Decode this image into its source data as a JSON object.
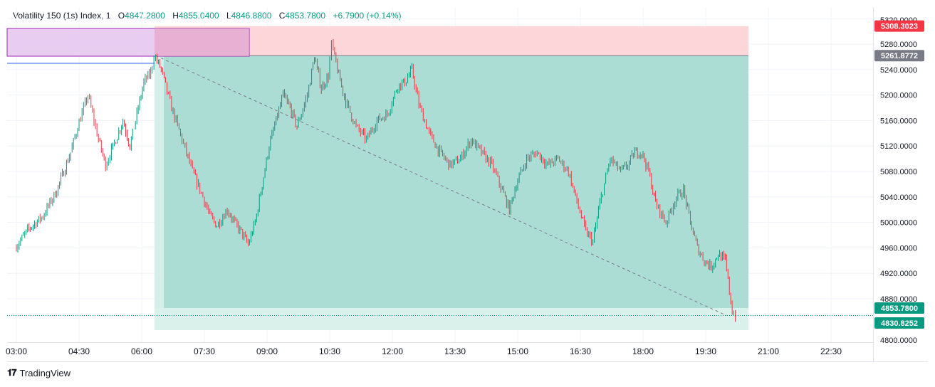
{
  "legend": {
    "title": "Volatility 150 (1s) Index, 1",
    "o_label": "O",
    "o_value": "4847.2800",
    "h_label": "H",
    "h_value": "4855.0400",
    "l_label": "L",
    "l_value": "4846.8800",
    "c_label": "C",
    "c_value": "4853.7800",
    "change": "+6.7900 (+0.14%)"
  },
  "footer": {
    "logo_text": "TradingView",
    "logo_icon": "tradingview-logo-icon"
  },
  "colors": {
    "up": "#089981",
    "down": "#f23645",
    "target_zone": "#a7dbd2",
    "stop_zone": "#fcd6d9",
    "purple_zone": "#e6c8f0",
    "price_label_up": "#089981",
    "price_label_red": "#f23645",
    "price_label_gray": "#787b86"
  },
  "chart_data": {
    "type": "candlestick",
    "title": "Volatility 150 (1s) Index, 1",
    "y_ticks": [
      "5320.0000",
      "5280.0000",
      "5240.0000",
      "5200.0000",
      "5160.0000",
      "5120.0000",
      "5080.0000",
      "5040.0000",
      "5000.0000",
      "4960.0000",
      "4920.0000",
      "4880.0000",
      "4800.0000"
    ],
    "x_ticks": [
      "03:00",
      "04:30",
      "06:00",
      "07:30",
      "09:00",
      "10:30",
      "12:00",
      "13:30",
      "15:00",
      "16:30",
      "18:00",
      "19:30",
      "21:00",
      "22:30"
    ],
    "ylim": [
      4800,
      5325
    ],
    "price_labels": [
      {
        "text": "5308.3023",
        "value": 5308.3023,
        "style": "red"
      },
      {
        "text": "5261.8772",
        "value": 5261.8772,
        "style": "gray"
      },
      {
        "text": "4853.7800",
        "value": 4853.78,
        "style": "green"
      },
      {
        "text": "4830.8252",
        "value": 4830.8252,
        "style": "green"
      }
    ],
    "position_tool": {
      "entry": 5261.8772,
      "stop": 5308.3023,
      "target": 4830.8252,
      "start": "06:10",
      "end": "20:10"
    },
    "trend_line": {
      "from": {
        "time": "06:20",
        "price": 5262
      },
      "to": {
        "time": "20:00",
        "price": 4853.78
      }
    },
    "path": [
      [
        "03:00",
        4960
      ],
      [
        "03:20",
        4990
      ],
      [
        "03:40",
        5010
      ],
      [
        "04:00",
        5050
      ],
      [
        "04:20",
        5110
      ],
      [
        "04:30",
        5150
      ],
      [
        "04:45",
        5200
      ],
      [
        "05:00",
        5130
      ],
      [
        "05:10",
        5090
      ],
      [
        "05:25",
        5130
      ],
      [
        "05:35",
        5160
      ],
      [
        "05:45",
        5120
      ],
      [
        "05:55",
        5170
      ],
      [
        "06:05",
        5220
      ],
      [
        "06:15",
        5235
      ],
      [
        "06:20",
        5262
      ],
      [
        "06:30",
        5240
      ],
      [
        "06:45",
        5180
      ],
      [
        "07:00",
        5130
      ],
      [
        "07:15",
        5080
      ],
      [
        "07:30",
        5040
      ],
      [
        "07:40",
        5010
      ],
      [
        "07:50",
        4995
      ],
      [
        "08:05",
        5020
      ],
      [
        "08:15",
        5000
      ],
      [
        "08:25",
        4985
      ],
      [
        "08:35",
        4965
      ],
      [
        "08:45",
        5000
      ],
      [
        "08:55",
        5060
      ],
      [
        "09:05",
        5120
      ],
      [
        "09:15",
        5160
      ],
      [
        "09:25",
        5200
      ],
      [
        "09:35",
        5180
      ],
      [
        "09:45",
        5150
      ],
      [
        "10:00",
        5200
      ],
      [
        "10:10",
        5260
      ],
      [
        "10:20",
        5210
      ],
      [
        "10:30",
        5230
      ],
      [
        "10:35",
        5280
      ],
      [
        "10:45",
        5230
      ],
      [
        "10:55",
        5190
      ],
      [
        "11:10",
        5150
      ],
      [
        "11:25",
        5130
      ],
      [
        "11:40",
        5160
      ],
      [
        "11:55",
        5170
      ],
      [
        "12:10",
        5215
      ],
      [
        "12:20",
        5220
      ],
      [
        "12:30",
        5240
      ],
      [
        "12:40",
        5185
      ],
      [
        "12:55",
        5140
      ],
      [
        "13:10",
        5110
      ],
      [
        "13:25",
        5090
      ],
      [
        "13:40",
        5100
      ],
      [
        "13:55",
        5130
      ],
      [
        "14:10",
        5110
      ],
      [
        "14:25",
        5090
      ],
      [
        "14:40",
        5050
      ],
      [
        "14:50",
        5020
      ],
      [
        "15:00",
        5060
      ],
      [
        "15:15",
        5100
      ],
      [
        "15:30",
        5110
      ],
      [
        "15:45",
        5090
      ],
      [
        "16:00",
        5100
      ],
      [
        "16:15",
        5080
      ],
      [
        "16:25",
        5040
      ],
      [
        "16:40",
        4985
      ],
      [
        "16:50",
        4970
      ],
      [
        "17:00",
        5030
      ],
      [
        "17:15",
        5100
      ],
      [
        "17:30",
        5080
      ],
      [
        "17:40",
        5090
      ],
      [
        "17:50",
        5110
      ],
      [
        "18:00",
        5110
      ],
      [
        "18:10",
        5080
      ],
      [
        "18:20",
        5030
      ],
      [
        "18:35",
        5000
      ],
      [
        "18:50",
        5040
      ],
      [
        "19:00",
        5050
      ],
      [
        "19:10",
        5000
      ],
      [
        "19:20",
        4960
      ],
      [
        "19:30",
        4940
      ],
      [
        "19:40",
        4930
      ],
      [
        "19:50",
        4950
      ],
      [
        "20:00",
        4940
      ],
      [
        "20:10",
        4860
      ],
      [
        "20:15",
        4853.78
      ]
    ]
  }
}
